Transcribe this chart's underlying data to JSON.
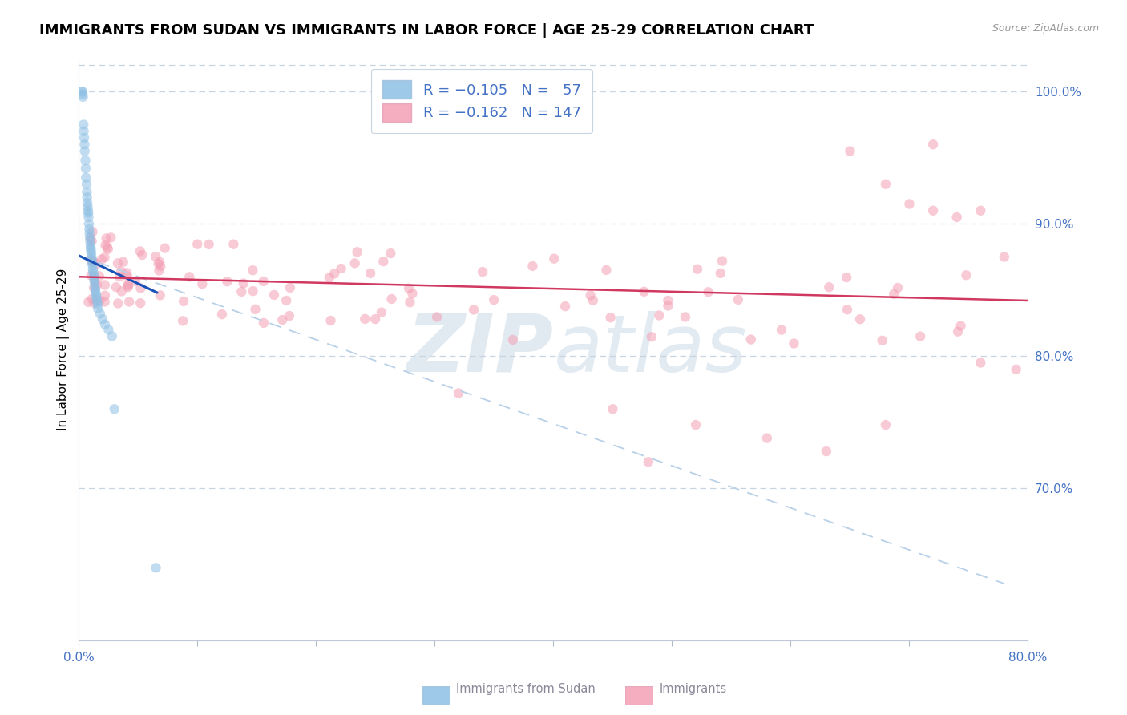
{
  "title": "IMMIGRANTS FROM SUDAN VS IMMIGRANTS IN LABOR FORCE | AGE 25-29 CORRELATION CHART",
  "source": "Source: ZipAtlas.com",
  "ylabel": "In Labor Force | Age 25-29",
  "xlim": [
    0.0,
    0.8
  ],
  "ylim": [
    0.585,
    1.025
  ],
  "right_yticks": [
    0.7,
    0.8,
    0.9,
    1.0
  ],
  "blue_R": "-0.105",
  "blue_N": "57",
  "pink_R": "-0.162",
  "pink_N": "147",
  "blue_color": "#8ec0e4",
  "pink_color": "#f4a0b5",
  "blue_line_color": "#1a52b8",
  "pink_line_color": "#d03860",
  "dashed_line_color": "#b8d0e8",
  "label_color": "#4472c4",
  "watermark_color": "#d0dce8",
  "scatter_alpha": 0.55,
  "scatter_size": 80,
  "title_fontsize": 13,
  "source_fontsize": 9,
  "axis_label_fontsize": 11,
  "tick_fontsize": 11,
  "legend_fontsize": 13
}
